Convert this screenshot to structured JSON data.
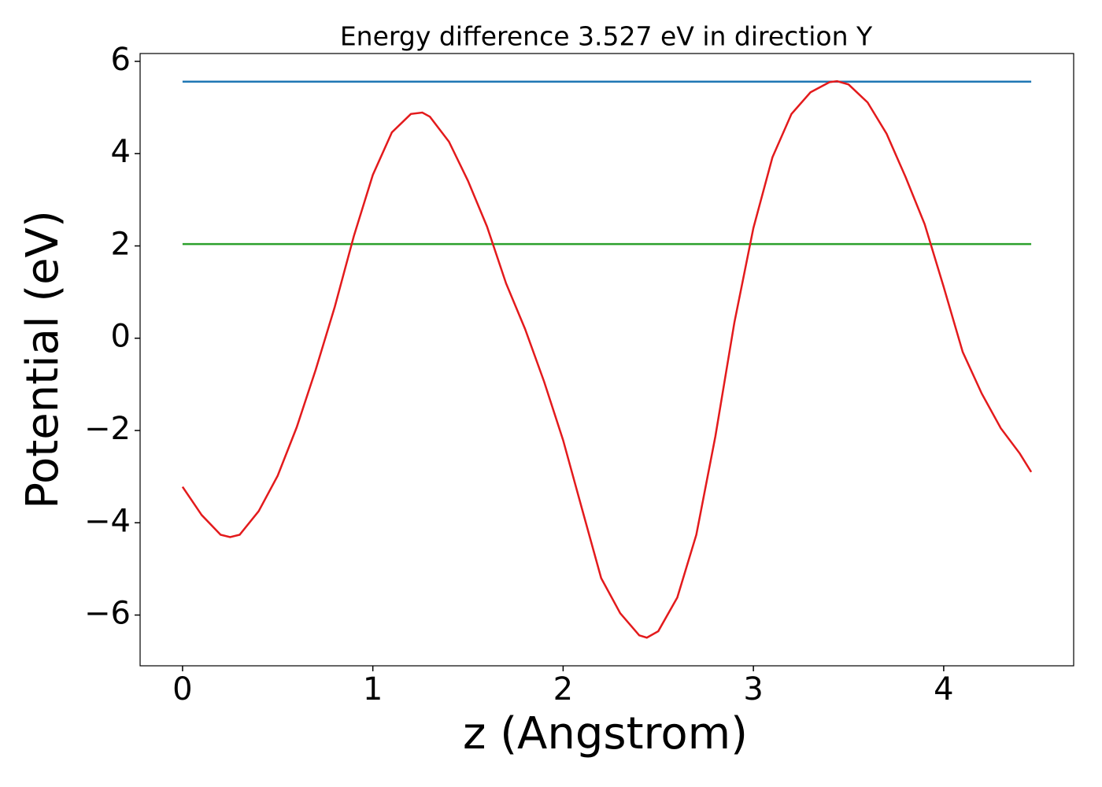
{
  "chart_data": {
    "type": "line",
    "title": "Energy difference 3.527 eV in direction Y",
    "xlabel": "z (Angstrom)",
    "ylabel": "Potential (eV)",
    "xlim": [
      -0.223,
      4.683
    ],
    "ylim": [
      -7.1,
      6.17
    ],
    "xticks": [
      0,
      1,
      2,
      3,
      4
    ],
    "yticks": [
      {
        "value": -6,
        "label": "−6"
      },
      {
        "value": -4,
        "label": "−4"
      },
      {
        "value": -2,
        "label": "−2"
      },
      0,
      2,
      4,
      6
    ],
    "series": [
      {
        "color": "#1f77b4",
        "x": [
          0,
          4.46
        ],
        "values": [
          5.56,
          5.56
        ]
      },
      {
        "color": "#2ca02c",
        "x": [
          0,
          4.46
        ],
        "values": [
          2.04,
          2.04
        ]
      },
      {
        "color": "#e31a1c",
        "x": [
          0,
          0.1,
          0.2,
          0.25,
          0.3,
          0.4,
          0.5,
          0.6,
          0.7,
          0.8,
          0.9,
          1.0,
          1.1,
          1.2,
          1.26,
          1.3,
          1.4,
          1.5,
          1.6,
          1.7,
          1.8,
          1.9,
          2.0,
          2.1,
          2.2,
          2.3,
          2.4,
          2.44,
          2.5,
          2.6,
          2.7,
          2.8,
          2.9,
          3.0,
          3.1,
          3.2,
          3.3,
          3.4,
          3.44,
          3.5,
          3.6,
          3.7,
          3.8,
          3.9,
          4.0,
          4.1,
          4.2,
          4.3,
          4.4,
          4.46
        ],
        "values": [
          -3.22,
          -3.83,
          -4.26,
          -4.31,
          -4.26,
          -3.75,
          -2.98,
          -1.93,
          -0.68,
          0.68,
          2.21,
          3.54,
          4.46,
          4.86,
          4.89,
          4.8,
          4.26,
          3.41,
          2.42,
          1.19,
          0.2,
          -0.94,
          -2.21,
          -3.71,
          -5.2,
          -5.96,
          -6.44,
          -6.49,
          -6.35,
          -5.62,
          -4.26,
          -2.13,
          0.34,
          2.39,
          3.92,
          4.86,
          5.33,
          5.55,
          5.57,
          5.5,
          5.11,
          4.43,
          3.49,
          2.47,
          1.11,
          -0.3,
          -1.2,
          -1.95,
          -2.5,
          -2.9
        ]
      }
    ]
  }
}
